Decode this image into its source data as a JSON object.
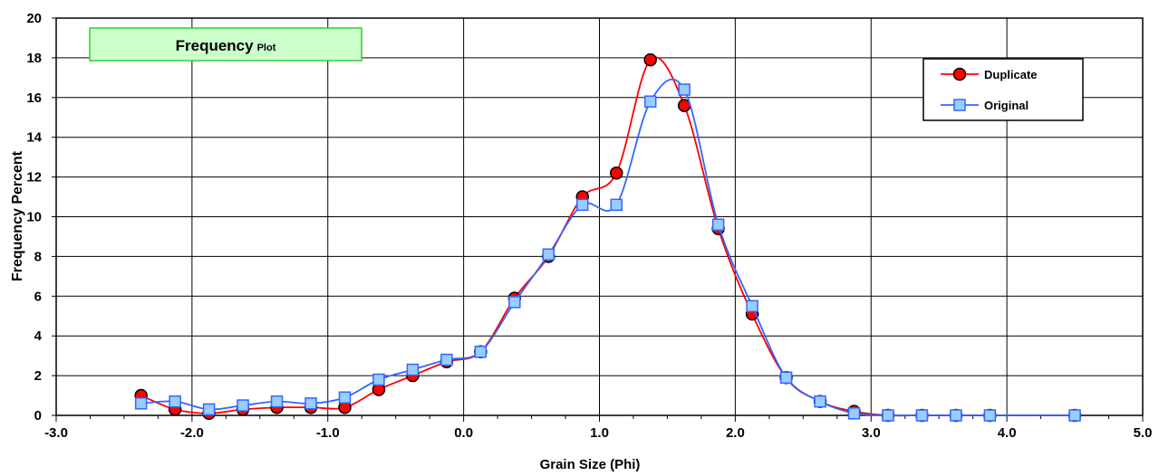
{
  "chart_data": {
    "type": "line",
    "title": "Frequency",
    "title_suffix": "Plot",
    "xlabel": "Grain Size (Phi)",
    "ylabel": "Frequency Percent",
    "xlim": [
      -3.0,
      5.0
    ],
    "ylim": [
      0,
      20
    ],
    "xticks": [
      "-3.0",
      "-2.0",
      "-1.0",
      "0.0",
      "1.0",
      "2.0",
      "3.0",
      "4.0",
      "5.0"
    ],
    "yticks": [
      "0",
      "2",
      "4",
      "6",
      "8",
      "10",
      "12",
      "14",
      "16",
      "18",
      "20"
    ],
    "grid": true,
    "legend_position": "top-right",
    "colors": {
      "title_box_fill": "#ccffcc",
      "title_box_border": "#33cc33"
    },
    "series": [
      {
        "name": "Duplicate",
        "line_color": "#ff0000",
        "marker": "circle",
        "marker_fill": "#ff0000",
        "marker_stroke": "#000000",
        "x": [
          -2.375,
          -2.125,
          -1.875,
          -1.625,
          -1.375,
          -1.125,
          -0.875,
          -0.625,
          -0.375,
          -0.125,
          0.125,
          0.375,
          0.625,
          0.875,
          1.125,
          1.375,
          1.625,
          1.875,
          2.125,
          2.375,
          2.625,
          2.875,
          3.125,
          3.375,
          3.625,
          3.875,
          4.5
        ],
        "y": [
          1.0,
          0.3,
          0.1,
          0.3,
          0.4,
          0.4,
          0.4,
          1.3,
          2.0,
          2.7,
          3.2,
          5.9,
          8.0,
          11.0,
          12.2,
          17.9,
          15.6,
          9.4,
          5.1,
          1.9,
          0.7,
          0.2,
          0.0,
          0.0,
          0.0,
          0.0,
          0.0
        ]
      },
      {
        "name": "Original",
        "line_color": "#3366ff",
        "marker": "square",
        "marker_fill": "#99ccff",
        "marker_stroke": "#3366ff",
        "x": [
          -2.375,
          -2.125,
          -1.875,
          -1.625,
          -1.375,
          -1.125,
          -0.875,
          -0.625,
          -0.375,
          -0.125,
          0.125,
          0.375,
          0.625,
          0.875,
          1.125,
          1.375,
          1.625,
          1.875,
          2.125,
          2.375,
          2.625,
          2.875,
          3.125,
          3.375,
          3.625,
          3.875,
          4.5
        ],
        "y": [
          0.6,
          0.7,
          0.3,
          0.5,
          0.7,
          0.6,
          0.9,
          1.8,
          2.3,
          2.8,
          3.2,
          5.7,
          8.1,
          10.6,
          10.6,
          15.8,
          16.4,
          9.6,
          5.5,
          1.9,
          0.7,
          0.1,
          0.0,
          0.0,
          0.0,
          0.0,
          0.0
        ]
      }
    ]
  }
}
